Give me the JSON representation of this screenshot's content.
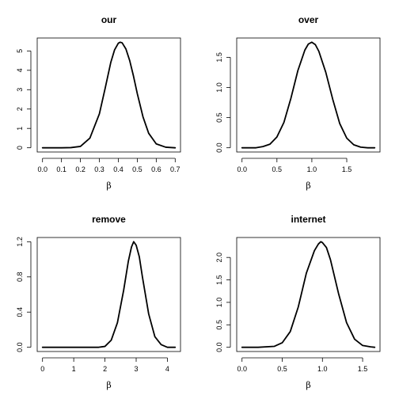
{
  "chart_data": [
    {
      "type": "line",
      "title": "our",
      "xlabel": "β",
      "ylabel": "",
      "xlim": [
        0.0,
        0.7
      ],
      "ylim": [
        0,
        5.45
      ],
      "xticks": [
        0.0,
        0.1,
        0.2,
        0.3,
        0.4,
        0.5,
        0.6,
        0.7
      ],
      "xtick_labels": [
        "0.0",
        "0.1",
        "0.2",
        "0.3",
        "0.4",
        "0.5",
        "0.6",
        "0.7"
      ],
      "yticks": [
        0,
        1,
        2,
        3,
        4,
        5
      ],
      "ytick_labels": [
        "0",
        "1",
        "2",
        "3",
        "4",
        "5"
      ],
      "series": [
        {
          "x": [
            0.0,
            0.05,
            0.1,
            0.15,
            0.2,
            0.25,
            0.3,
            0.33,
            0.36,
            0.38,
            0.4,
            0.41,
            0.42,
            0.44,
            0.46,
            0.48,
            0.5,
            0.53,
            0.56,
            0.6,
            0.65,
            0.7
          ],
          "y": [
            0.0,
            0.0,
            0.0,
            0.01,
            0.07,
            0.5,
            1.75,
            3.05,
            4.4,
            5.05,
            5.4,
            5.45,
            5.42,
            5.1,
            4.5,
            3.7,
            2.8,
            1.6,
            0.75,
            0.2,
            0.03,
            0.0
          ]
        }
      ]
    },
    {
      "type": "line",
      "title": "over",
      "xlabel": "β",
      "ylabel": "",
      "xlim": [
        0.0,
        1.9
      ],
      "ylim": [
        0,
        1.75
      ],
      "xticks": [
        0.0,
        0.5,
        1.0,
        1.5
      ],
      "xtick_labels": [
        "0.0",
        "0.5",
        "1.0",
        "1.5"
      ],
      "yticks": [
        0.0,
        0.5,
        1.0,
        1.5
      ],
      "ytick_labels": [
        "0.0",
        "0.5",
        "1.0",
        "1.5"
      ],
      "series": [
        {
          "x": [
            0.0,
            0.2,
            0.3,
            0.4,
            0.5,
            0.6,
            0.7,
            0.8,
            0.9,
            0.95,
            1.0,
            1.05,
            1.1,
            1.2,
            1.3,
            1.4,
            1.5,
            1.6,
            1.7,
            1.8,
            1.9
          ],
          "y": [
            0.0,
            0.0,
            0.02,
            0.06,
            0.18,
            0.42,
            0.82,
            1.28,
            1.62,
            1.72,
            1.75,
            1.71,
            1.6,
            1.25,
            0.8,
            0.4,
            0.16,
            0.05,
            0.01,
            0.0,
            0.0
          ]
        }
      ]
    },
    {
      "type": "line",
      "title": "remove",
      "xlabel": "β",
      "ylabel": "",
      "xlim": [
        0,
        4.25
      ],
      "ylim": [
        0,
        1.2
      ],
      "xticks": [
        0,
        1,
        2,
        3,
        4
      ],
      "xtick_labels": [
        "0",
        "1",
        "2",
        "3",
        "4"
      ],
      "yticks": [
        0.0,
        0.4,
        0.8,
        1.2
      ],
      "ytick_labels": [
        "0.0",
        "0.4",
        "0.8",
        "1.2"
      ],
      "series": [
        {
          "x": [
            0.0,
            1.0,
            1.8,
            2.0,
            2.2,
            2.4,
            2.6,
            2.75,
            2.85,
            2.92,
            3.0,
            3.1,
            3.2,
            3.4,
            3.6,
            3.8,
            4.0,
            4.25
          ],
          "y": [
            0.0,
            0.0,
            0.0,
            0.01,
            0.08,
            0.28,
            0.65,
            0.98,
            1.14,
            1.2,
            1.16,
            1.03,
            0.8,
            0.38,
            0.12,
            0.03,
            0.0,
            0.0
          ]
        }
      ]
    },
    {
      "type": "line",
      "title": "internet",
      "xlabel": "β",
      "ylabel": "",
      "xlim": [
        0.0,
        1.65
      ],
      "ylim": [
        0,
        2.35
      ],
      "xticks": [
        0.0,
        0.5,
        1.0,
        1.5
      ],
      "xtick_labels": [
        "0.0",
        "0.5",
        "1.0",
        "1.5"
      ],
      "yticks": [
        0.0,
        0.5,
        1.0,
        1.5,
        2.0
      ],
      "ytick_labels": [
        "0.0",
        "0.5",
        "1.0",
        "1.5",
        "2.0"
      ],
      "series": [
        {
          "x": [
            0.0,
            0.2,
            0.4,
            0.5,
            0.6,
            0.7,
            0.8,
            0.9,
            0.95,
            0.98,
            1.0,
            1.05,
            1.1,
            1.2,
            1.3,
            1.4,
            1.5,
            1.6,
            1.65
          ],
          "y": [
            0.0,
            0.0,
            0.02,
            0.1,
            0.35,
            0.9,
            1.65,
            2.15,
            2.3,
            2.35,
            2.33,
            2.22,
            1.95,
            1.2,
            0.55,
            0.18,
            0.04,
            0.01,
            0.0
          ]
        }
      ]
    }
  ]
}
